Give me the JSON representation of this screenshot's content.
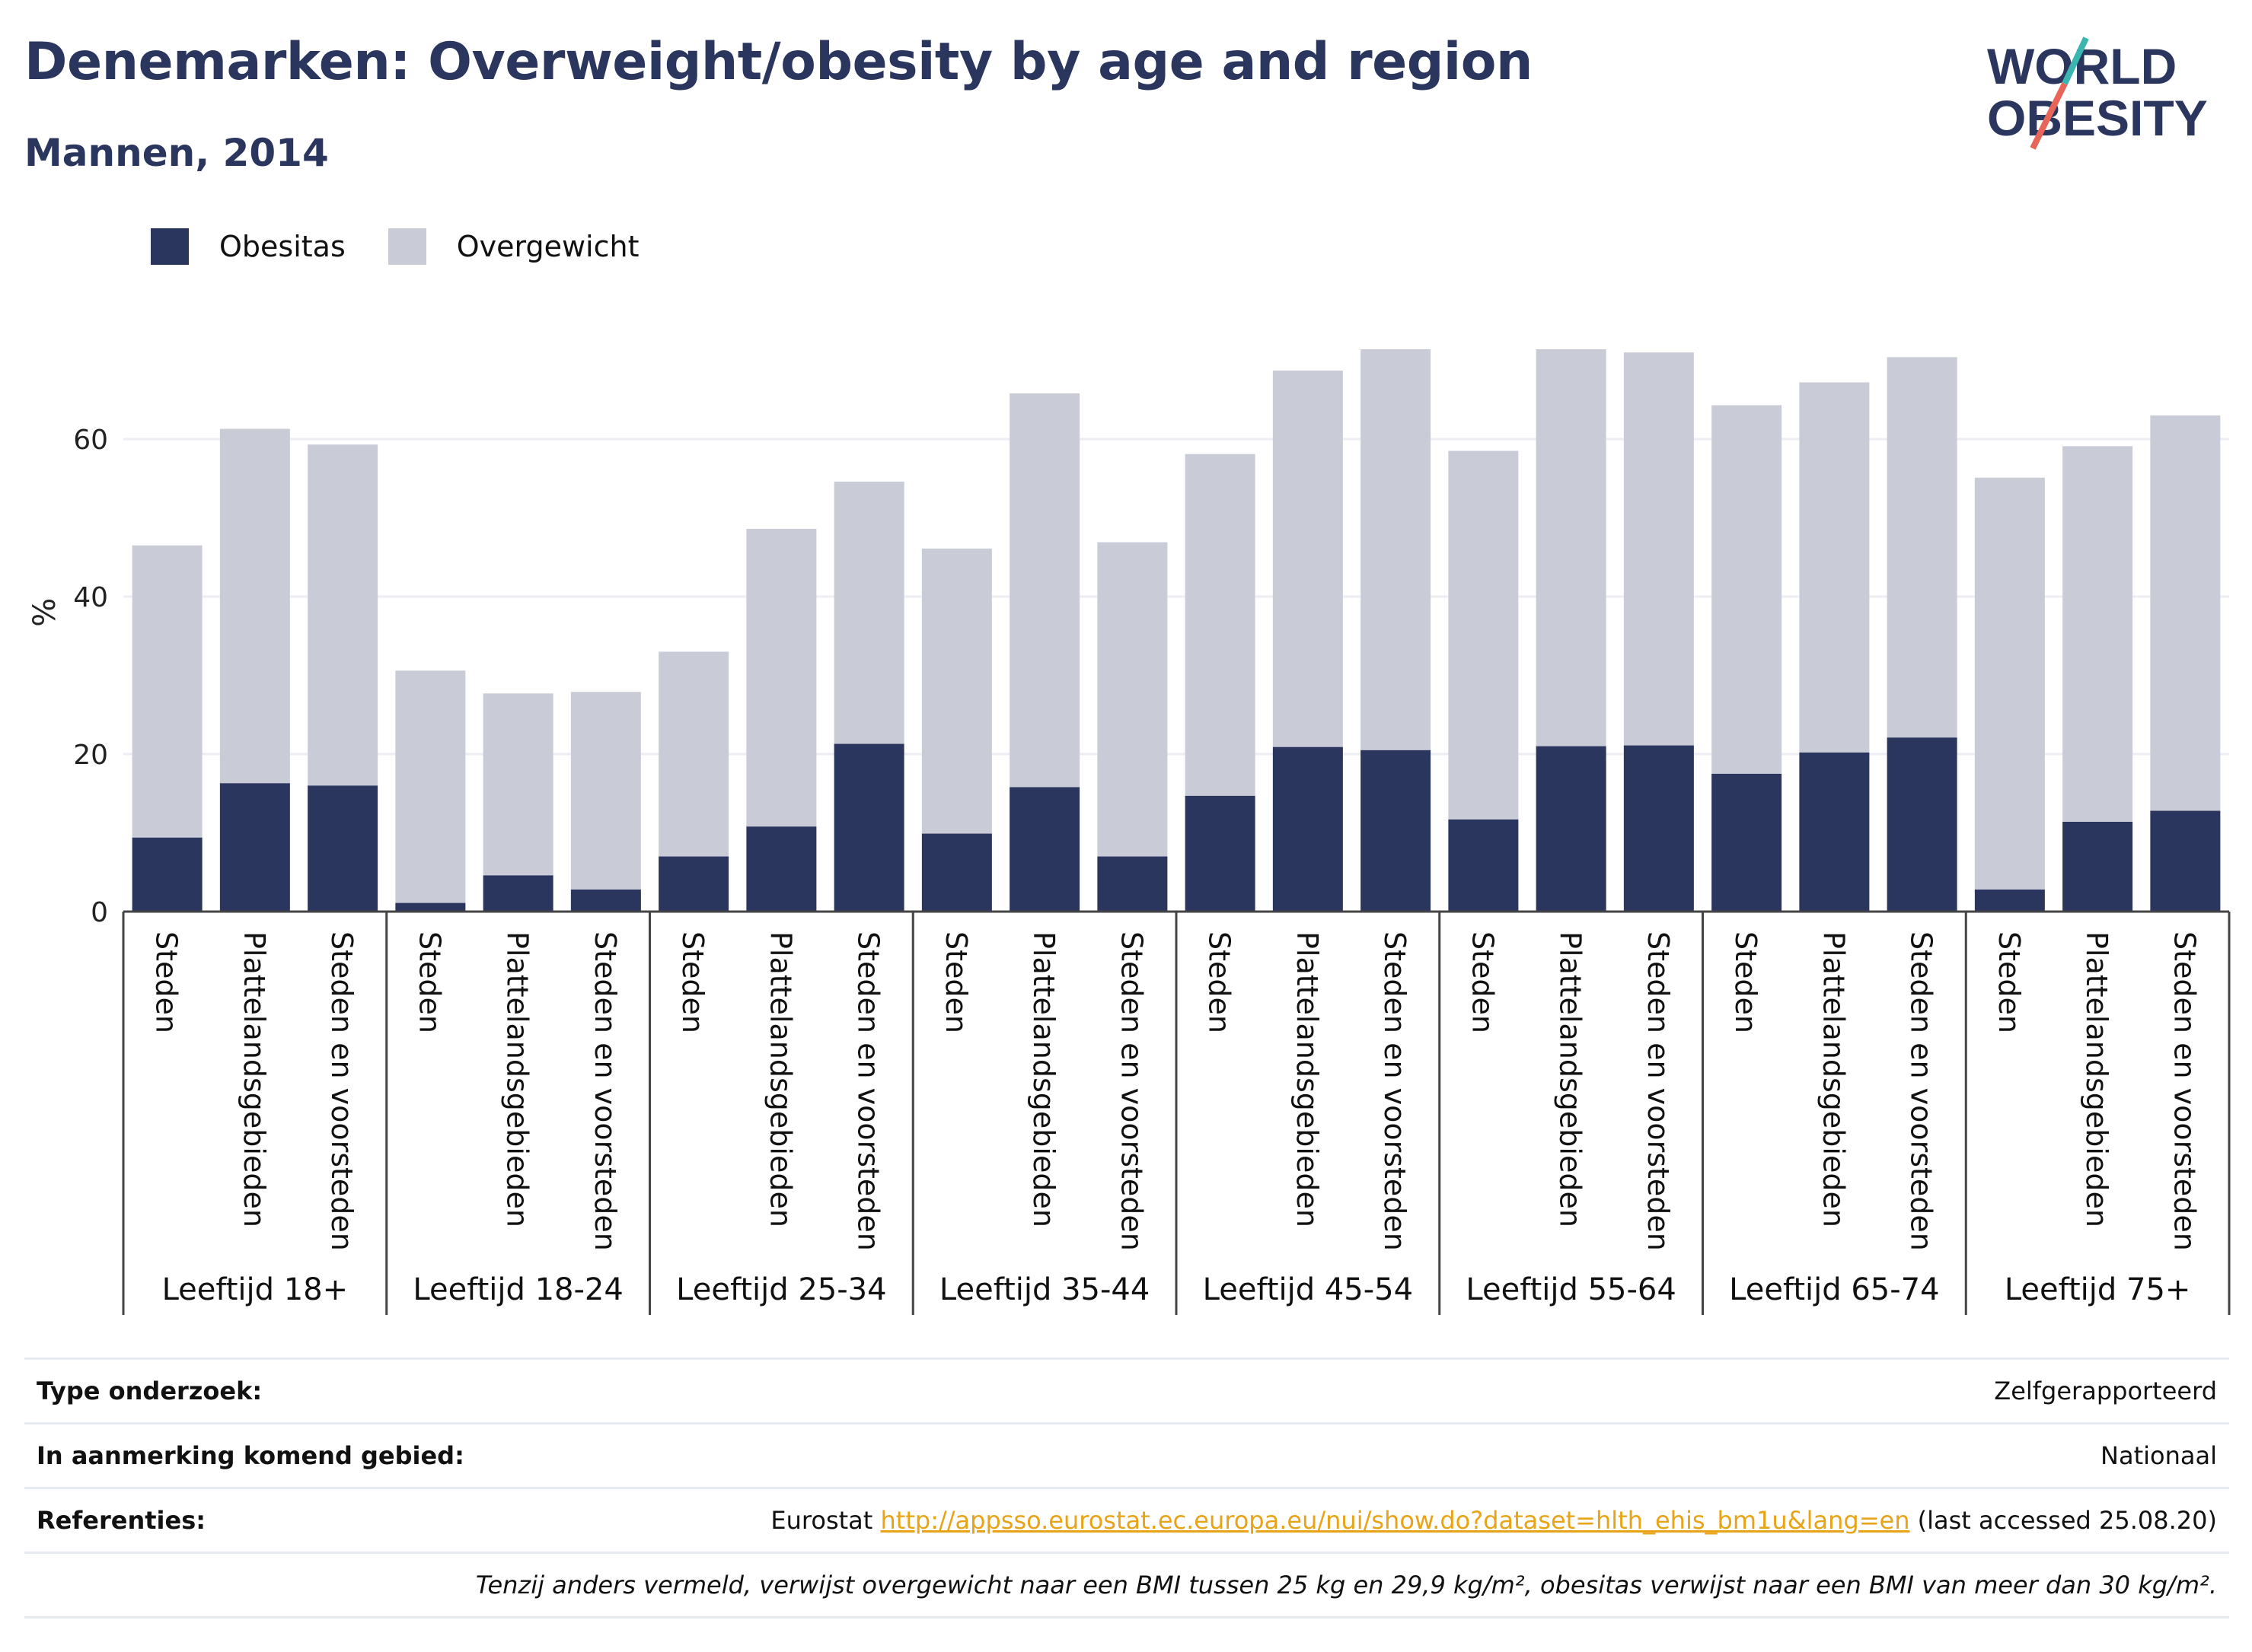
{
  "header": {
    "title": "Denemarken: Overweight/obesity by age and region",
    "subtitle": "Mannen, 2014"
  },
  "logo": {
    "line1": "WORLD",
    "line2": "OBESITY"
  },
  "colors": {
    "obesitas": "#2b365f",
    "overgewicht": "#c9cbd7",
    "title": "#2b365f",
    "link": "#e8a317",
    "logo_slash_red": "#e8655a",
    "logo_slash_teal": "#3ab5b0"
  },
  "chart_data": {
    "type": "bar",
    "stacked": true,
    "ylabel": "%",
    "ylim": [
      0,
      76
    ],
    "yticks": [
      0,
      20,
      40,
      60
    ],
    "grid": true,
    "legend_position": "top-left",
    "groups": [
      {
        "label": "Leeftijd 18+",
        "categories": [
          "Steden",
          "Plattelandsgebieden",
          "Steden en voorsteden"
        ]
      },
      {
        "label": "Leeftijd 18-24",
        "categories": [
          "Steden",
          "Plattelandsgebieden",
          "Steden en voorsteden"
        ]
      },
      {
        "label": "Leeftijd 25-34",
        "categories": [
          "Steden",
          "Plattelandsgebieden",
          "Steden en voorsteden"
        ]
      },
      {
        "label": "Leeftijd 35-44",
        "categories": [
          "Steden",
          "Plattelandsgebieden",
          "Steden en voorsteden"
        ]
      },
      {
        "label": "Leeftijd 45-54",
        "categories": [
          "Steden",
          "Plattelandsgebieden",
          "Steden en voorsteden"
        ]
      },
      {
        "label": "Leeftijd 55-64",
        "categories": [
          "Steden",
          "Plattelandsgebieden",
          "Steden en voorsteden"
        ]
      },
      {
        "label": "Leeftijd 65-74",
        "categories": [
          "Steden",
          "Plattelandsgebieden",
          "Steden en voorsteden"
        ]
      },
      {
        "label": "Leeftijd 75+",
        "categories": [
          "Steden",
          "Plattelandsgebieden",
          "Steden en voorsteden"
        ]
      }
    ],
    "series": [
      {
        "name": "Obesitas",
        "values": [
          9.4,
          16.3,
          16.0,
          1.1,
          4.6,
          2.8,
          7.0,
          10.8,
          21.3,
          9.9,
          15.8,
          7.0,
          14.7,
          20.9,
          20.5,
          11.7,
          21.0,
          21.1,
          17.5,
          20.2,
          22.1,
          2.8,
          11.4,
          12.8
        ]
      },
      {
        "name": "Overgewicht",
        "values": [
          37.1,
          45.0,
          43.3,
          29.5,
          23.1,
          25.1,
          26.0,
          37.8,
          33.3,
          36.2,
          50.0,
          39.9,
          43.4,
          47.8,
          50.9,
          46.8,
          50.4,
          49.9,
          46.8,
          47.0,
          48.3,
          52.3,
          47.7,
          50.2
        ]
      }
    ]
  },
  "info": {
    "survey_type_label": "Type onderzoek:",
    "survey_type_value": "Zelfgerapporteerd",
    "area_label": "In aanmerking komend gebied:",
    "area_value": "Nationaal",
    "references_label": "Referenties:",
    "references_prefix": "Eurostat ",
    "references_url": "http://appsso.eurostat.ec.europa.eu/nui/show.do?dataset=hlth_ehis_bm1u&lang=en",
    "references_suffix": " (last accessed 25.08.20)",
    "note": "Tenzij anders vermeld, verwijst overgewicht naar een BMI tussen 25 kg en 29,9 kg/m², obesitas verwijst naar een BMI van meer dan 30 kg/m²."
  }
}
